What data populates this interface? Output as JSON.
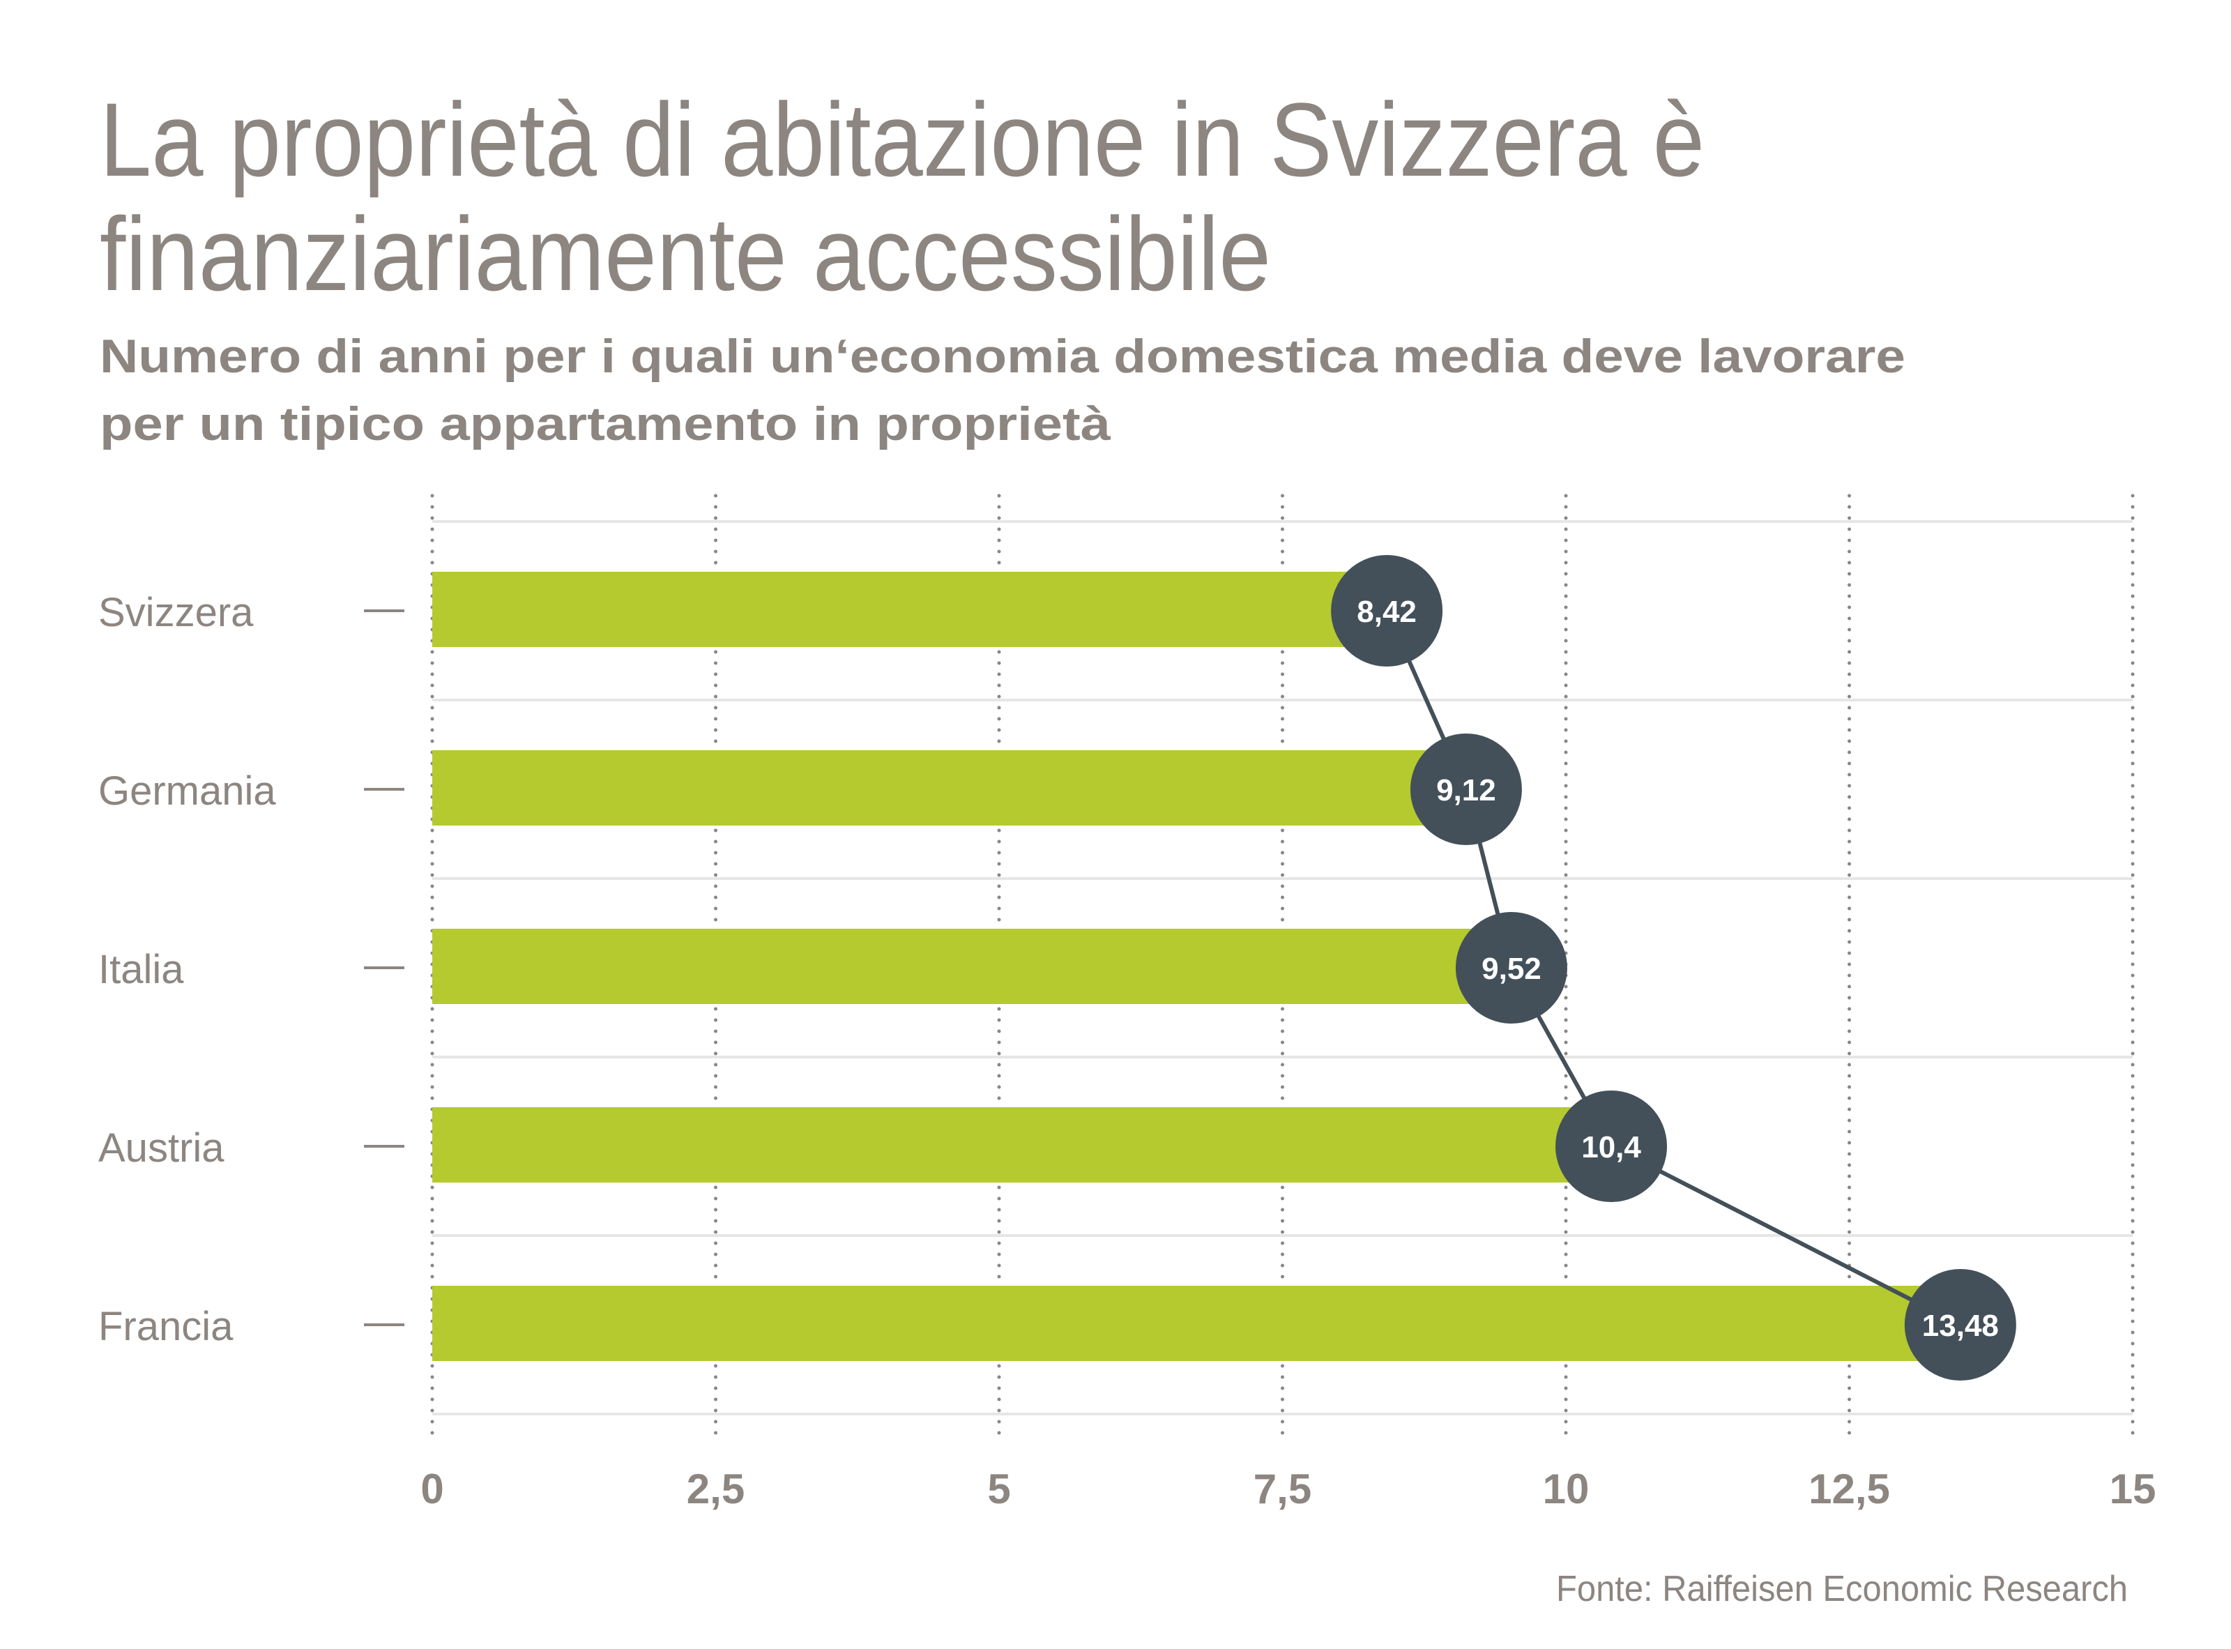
{
  "header": {
    "title_lines": [
      "La proprietà di abitazione in Svizzera è",
      "finanziariamente accessibile"
    ],
    "subtitle_lines": [
      "Numero di anni per i quali un‘economia domestica media deve lavorare",
      "per un tipico appartamento in proprietà"
    ]
  },
  "footer": {
    "source": "Fonte: Raiffeisen Economic Research"
  },
  "colors": {
    "bar": "#B4CA2F",
    "marker": "#435059",
    "connector": "#435059",
    "text": "#8C8580",
    "gridline": "#E6E6E6",
    "dotted_axis": "#8C8580",
    "value_text": "#FFFFFF"
  },
  "chart_data": {
    "type": "bar",
    "orientation": "horizontal",
    "title": "La proprietà di abitazione in Svizzera è finanziariamente accessibile",
    "subtitle": "Numero di anni per i quali un‘economia domestica media deve lavorare per un tipico appartamento in proprietà",
    "categories": [
      "Svizzera",
      "Germania",
      "Italia",
      "Austria",
      "Francia"
    ],
    "values": [
      8.42,
      9.12,
      9.52,
      10.4,
      13.48
    ],
    "value_labels": [
      "8,42",
      "9,12",
      "9,52",
      "10,4",
      "13,48"
    ],
    "xlabel": "",
    "ylabel": "",
    "xlim": [
      0,
      15
    ],
    "xticks": [
      0,
      2.5,
      5,
      7.5,
      10,
      12.5,
      15
    ],
    "xtick_labels": [
      "0",
      "2,5",
      "5",
      "7,5",
      "10",
      "12,5",
      "15"
    ],
    "grid": true,
    "markers_connected": true,
    "legend": "none",
    "source": "Fonte: Raiffeisen Economic Research"
  }
}
